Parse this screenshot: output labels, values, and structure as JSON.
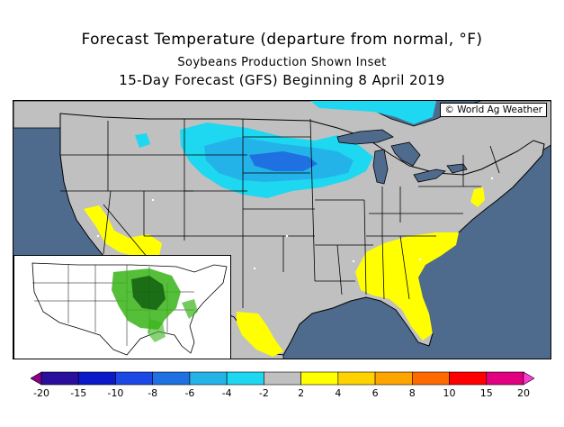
{
  "title": {
    "line1": "Forecast Temperature (departure from normal, °F)",
    "line2": "Soybeans Production Shown Inset",
    "line3": "15-Day Forecast (GFS) Beginning 8 April 2019"
  },
  "credit": "© World Ag Weather",
  "colors": {
    "ocean": "#4e6a8c",
    "land": "#c0c0c0",
    "neutral": "#c0c0c0",
    "cyan": "#1ed7f0",
    "light_blue": "#24b3e8",
    "blue": "#1f70e0",
    "yellow": "#ffff00",
    "inset_green": "#37b418",
    "inset_dark": "#0c5a0c"
  },
  "legend": {
    "ticks": [
      "-20",
      "-15",
      "-10",
      "-8",
      "-6",
      "-4",
      "-2",
      "2",
      "4",
      "6",
      "8",
      "10",
      "15",
      "20"
    ],
    "bins": [
      {
        "color": "#8b008b"
      },
      {
        "color": "#2a0f9c"
      },
      {
        "color": "#0a1ac8"
      },
      {
        "color": "#1c48e6"
      },
      {
        "color": "#1f70e0"
      },
      {
        "color": "#24b3e8"
      },
      {
        "color": "#1ed7f0"
      },
      {
        "color": "#c0c0c0"
      },
      {
        "color": "#ffff00"
      },
      {
        "color": "#ffd200"
      },
      {
        "color": "#ffa500"
      },
      {
        "color": "#ff6a00"
      },
      {
        "color": "#ff0000"
      },
      {
        "color": "#e00080"
      },
      {
        "color": "#ff3cd2"
      }
    ]
  }
}
